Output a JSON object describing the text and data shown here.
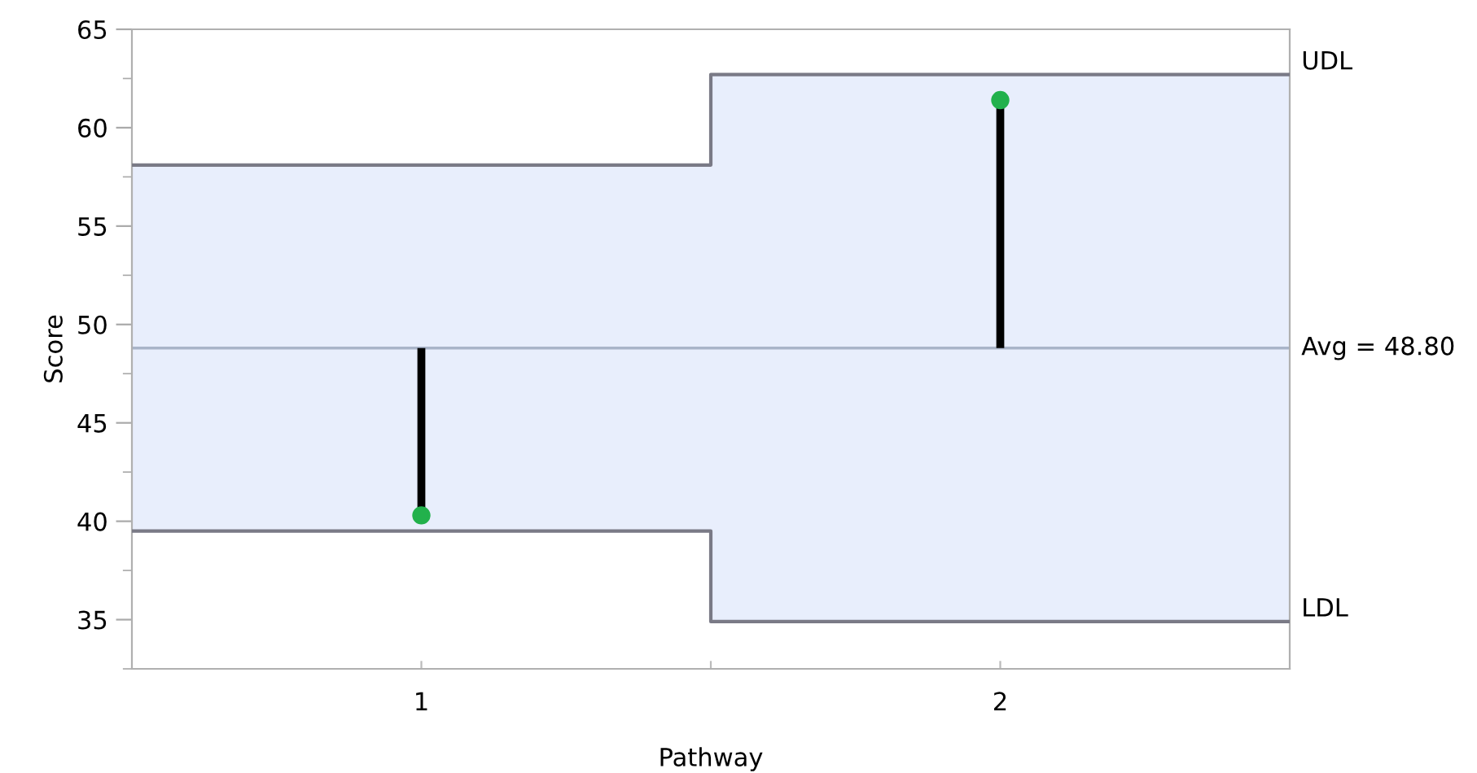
{
  "chart_data": {
    "type": "scatter",
    "xlabel": "Pathway",
    "ylabel": "Score",
    "series": [
      {
        "type": "area",
        "color": "#e8eefc",
        "x": [
          0.5,
          1.5,
          1.5,
          2.5
        ],
        "values": [
          null,
          null,
          null,
          null
        ],
        "lower": [
          39.5,
          39.5,
          34.9,
          34.9
        ],
        "upper": [
          58.1,
          58.1,
          62.7,
          62.7
        ]
      },
      {
        "type": "line",
        "name": "UDL",
        "color": "#7a7a86",
        "x": [
          0.5,
          1.5,
          1.5,
          2.5
        ],
        "values": [
          58.1,
          58.1,
          62.7,
          62.7
        ]
      },
      {
        "type": "line",
        "name": "LDL",
        "color": "#7a7a86",
        "x": [
          0.5,
          1.5,
          1.5,
          2.5
        ],
        "values": [
          39.5,
          39.5,
          34.9,
          34.9
        ]
      },
      {
        "color": "#22b14c",
        "marker": "circle",
        "x": [
          1,
          2
        ],
        "values": [
          40.3,
          61.4
        ],
        "errors": [
          [
            40.3,
            48.8
          ],
          [
            48.8,
            61.4
          ]
        ]
      }
    ],
    "ref_lines": [
      {
        "axis": "y",
        "value": 48.8,
        "label": "Avg = 48.80",
        "color": "#a9b4c8"
      }
    ],
    "xlim": [
      0.5,
      2.5
    ],
    "xticks": [
      1,
      {
        "value": 1.5,
        "label": null
      },
      2
    ],
    "ylim": [
      32.5,
      65
    ],
    "yticks": [
      35,
      40,
      45,
      50,
      55,
      60,
      65
    ],
    "grid": false,
    "legend": false
  }
}
